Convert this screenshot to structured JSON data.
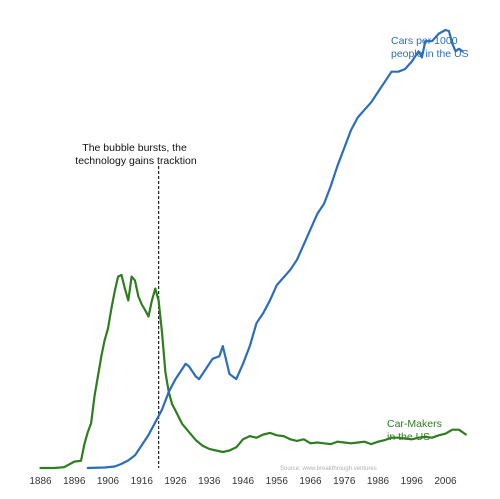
{
  "chart_data": {
    "type": "line",
    "title": "",
    "xlabel": "",
    "ylabel": "",
    "x_ticks": [
      "1886",
      "1896",
      "1906",
      "1916",
      "1926",
      "1936",
      "1946",
      "1956",
      "1966",
      "1976",
      "1986",
      "1996",
      "2006"
    ],
    "xlim": [
      1880,
      2015
    ],
    "cars_ylim": [
      0,
      870
    ],
    "makers_ylim": [
      0,
      300
    ],
    "series": [
      {
        "name": "Cars per 1000 people in the US",
        "label_lines": [
          "Cars per 1000",
          "people in the US"
        ],
        "color": "#2a6ebb",
        "axis": "cars",
        "points": [
          [
            1900,
            0
          ],
          [
            1905,
            1
          ],
          [
            1908,
            3
          ],
          [
            1910,
            8
          ],
          [
            1912,
            15
          ],
          [
            1914,
            25
          ],
          [
            1916,
            45
          ],
          [
            1918,
            65
          ],
          [
            1920,
            90
          ],
          [
            1922,
            115
          ],
          [
            1924,
            150
          ],
          [
            1926,
            175
          ],
          [
            1928,
            195
          ],
          [
            1929,
            205
          ],
          [
            1930,
            200
          ],
          [
            1932,
            180
          ],
          [
            1933,
            175
          ],
          [
            1935,
            195
          ],
          [
            1937,
            215
          ],
          [
            1939,
            220
          ],
          [
            1940,
            240
          ],
          [
            1942,
            185
          ],
          [
            1944,
            175
          ],
          [
            1946,
            205
          ],
          [
            1948,
            240
          ],
          [
            1950,
            285
          ],
          [
            1952,
            305
          ],
          [
            1954,
            330
          ],
          [
            1956,
            360
          ],
          [
            1958,
            375
          ],
          [
            1960,
            390
          ],
          [
            1962,
            410
          ],
          [
            1964,
            440
          ],
          [
            1966,
            470
          ],
          [
            1968,
            500
          ],
          [
            1970,
            520
          ],
          [
            1972,
            555
          ],
          [
            1974,
            595
          ],
          [
            1976,
            630
          ],
          [
            1978,
            665
          ],
          [
            1980,
            690
          ],
          [
            1982,
            705
          ],
          [
            1984,
            720
          ],
          [
            1986,
            740
          ],
          [
            1988,
            760
          ],
          [
            1990,
            780
          ],
          [
            1992,
            780
          ],
          [
            1994,
            785
          ],
          [
            1996,
            800
          ],
          [
            1998,
            820
          ],
          [
            1999,
            808
          ],
          [
            2000,
            840
          ],
          [
            2002,
            840
          ],
          [
            2004,
            855
          ],
          [
            2006,
            862
          ],
          [
            2007,
            860
          ],
          [
            2008,
            835
          ],
          [
            2009,
            820
          ],
          [
            2010,
            825
          ],
          [
            2011,
            820
          ]
        ]
      },
      {
        "name": "Car-Makers in the US",
        "label_lines": [
          "Car-Makers",
          "in the US"
        ],
        "color": "#2e7d1f",
        "axis": "makers",
        "points": [
          [
            1886,
            0
          ],
          [
            1890,
            0
          ],
          [
            1893,
            1
          ],
          [
            1896,
            8
          ],
          [
            1898,
            9
          ],
          [
            1899,
            30
          ],
          [
            1900,
            45
          ],
          [
            1901,
            56
          ],
          [
            1902,
            90
          ],
          [
            1903,
            115
          ],
          [
            1904,
            140
          ],
          [
            1905,
            160
          ],
          [
            1906,
            175
          ],
          [
            1907,
            200
          ],
          [
            1908,
            222
          ],
          [
            1909,
            240
          ],
          [
            1910,
            242
          ],
          [
            1911,
            225
          ],
          [
            1912,
            210
          ],
          [
            1913,
            240
          ],
          [
            1914,
            235
          ],
          [
            1915,
            215
          ],
          [
            1916,
            205
          ],
          [
            1917,
            198
          ],
          [
            1918,
            190
          ],
          [
            1919,
            210
          ],
          [
            1920,
            225
          ],
          [
            1921,
            210
          ],
          [
            1922,
            170
          ],
          [
            1923,
            120
          ],
          [
            1924,
            95
          ],
          [
            1925,
            80
          ],
          [
            1926,
            72
          ],
          [
            1928,
            55
          ],
          [
            1930,
            45
          ],
          [
            1932,
            35
          ],
          [
            1934,
            28
          ],
          [
            1936,
            24
          ],
          [
            1938,
            22
          ],
          [
            1940,
            20
          ],
          [
            1942,
            22
          ],
          [
            1944,
            26
          ],
          [
            1946,
            36
          ],
          [
            1948,
            40
          ],
          [
            1950,
            38
          ],
          [
            1952,
            42
          ],
          [
            1954,
            44
          ],
          [
            1956,
            41
          ],
          [
            1958,
            40
          ],
          [
            1960,
            36
          ],
          [
            1962,
            34
          ],
          [
            1964,
            36
          ],
          [
            1966,
            31
          ],
          [
            1968,
            32
          ],
          [
            1970,
            31
          ],
          [
            1972,
            30
          ],
          [
            1974,
            33
          ],
          [
            1976,
            32
          ],
          [
            1978,
            31
          ],
          [
            1980,
            32
          ],
          [
            1982,
            33
          ],
          [
            1984,
            30
          ],
          [
            1986,
            33
          ],
          [
            1988,
            35
          ],
          [
            1990,
            38
          ],
          [
            1992,
            38
          ],
          [
            1994,
            37
          ],
          [
            1996,
            36
          ],
          [
            1998,
            38
          ],
          [
            2000,
            39
          ],
          [
            2002,
            38
          ],
          [
            2004,
            41
          ],
          [
            2006,
            43
          ],
          [
            2008,
            48
          ],
          [
            2010,
            48
          ],
          [
            2012,
            42
          ]
        ]
      }
    ],
    "annotation": {
      "lines": [
        "The bubble bursts, the",
        "technology gains tracktion"
      ],
      "x": 1921
    },
    "source": "Source: www.breakthrough.ventures",
    "grid": false,
    "legend": "inline-labels"
  }
}
